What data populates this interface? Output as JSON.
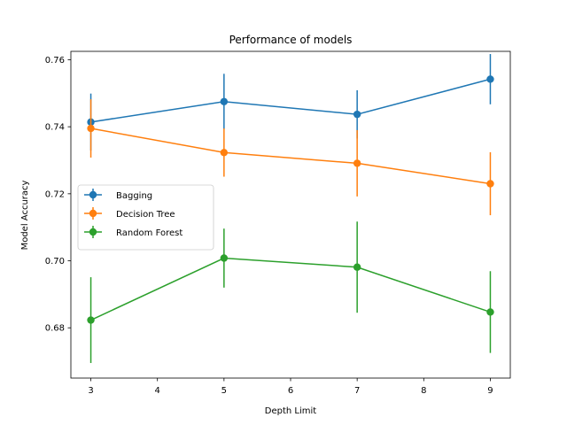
{
  "chart_data": {
    "type": "line",
    "title": "Performance of models",
    "xlabel": "Depth Limit",
    "ylabel": "Model Accuracy",
    "xlim": [
      2.7,
      9.3
    ],
    "ylim": [
      0.665,
      0.7625
    ],
    "xticks": [
      3,
      4,
      5,
      6,
      7,
      8,
      9
    ],
    "yticks": [
      0.68,
      0.7,
      0.72,
      0.74,
      0.76
    ],
    "x": [
      3,
      5,
      7,
      9
    ],
    "series": [
      {
        "name": "Bagging",
        "color": "#1f77b4",
        "values": [
          0.7414,
          0.7475,
          0.7437,
          0.7542
        ],
        "errors": [
          0.0085,
          0.0083,
          0.0072,
          0.0075
        ]
      },
      {
        "name": "Decision Tree",
        "color": "#ff7f0e",
        "values": [
          0.7395,
          0.7323,
          0.7291,
          0.723
        ],
        "errors": [
          0.0087,
          0.0072,
          0.0099,
          0.0094
        ]
      },
      {
        "name": "Random Forest",
        "color": "#2ca02c",
        "values": [
          0.6823,
          0.7008,
          0.6981,
          0.6847
        ],
        "errors": [
          0.0128,
          0.0088,
          0.0136,
          0.0122
        ]
      }
    ],
    "legend": {
      "placement": "center-left"
    },
    "grid": false
  }
}
